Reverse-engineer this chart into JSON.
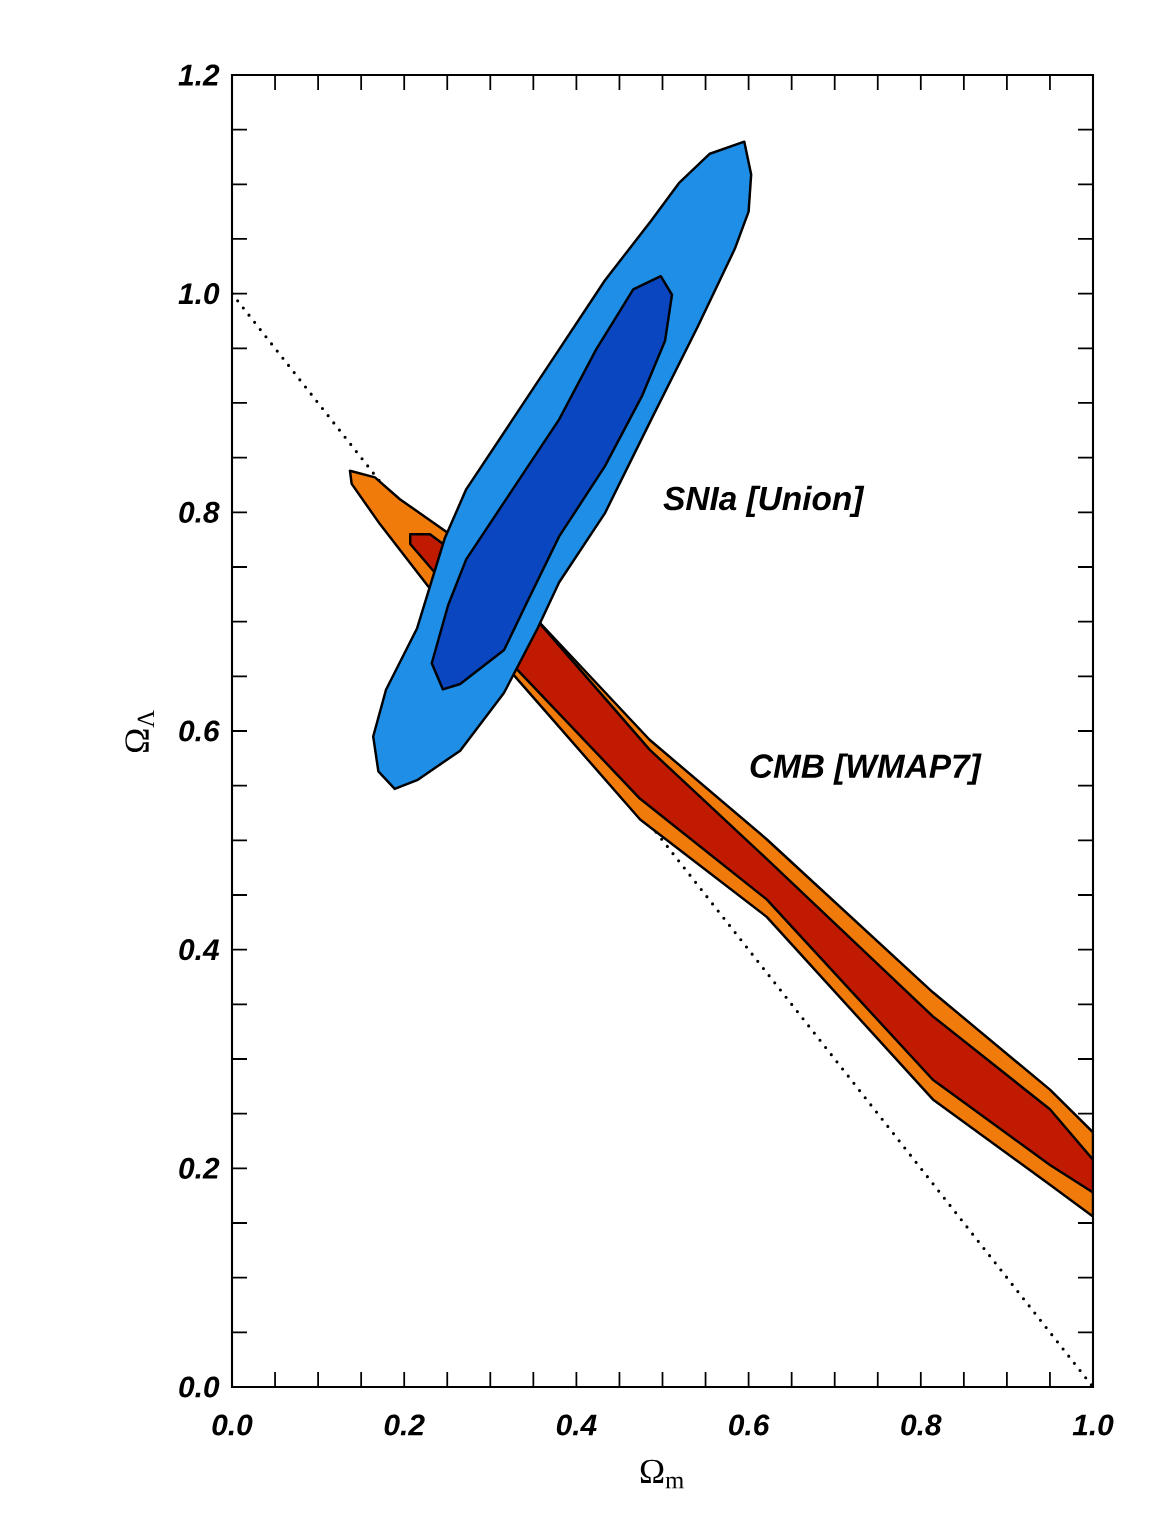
{
  "chart_data": {
    "type": "area",
    "xlabel": "Ω$_{m}$",
    "ylabel": "Ω$_{Λ}$",
    "xlim": [
      0,
      1
    ],
    "ylim": [
      0,
      1.2
    ],
    "xticks": [
      {
        "value": 0,
        "label": "0.0"
      },
      {
        "value": 0.05,
        "label": null
      },
      {
        "value": 0.1,
        "label": null
      },
      {
        "value": 0.15,
        "label": null
      },
      {
        "value": 0.2,
        "label": "0.2"
      },
      {
        "value": 0.25,
        "label": null
      },
      {
        "value": 0.3,
        "label": null
      },
      {
        "value": 0.35,
        "label": null
      },
      {
        "value": 0.4,
        "label": "0.4"
      },
      {
        "value": 0.45,
        "label": null
      },
      {
        "value": 0.5,
        "label": null
      },
      {
        "value": 0.55,
        "label": null
      },
      {
        "value": 0.6,
        "label": "0.6"
      },
      {
        "value": 0.65,
        "label": null
      },
      {
        "value": 0.7,
        "label": null
      },
      {
        "value": 0.75,
        "label": null
      },
      {
        "value": 0.8,
        "label": "0.8"
      },
      {
        "value": 0.85,
        "label": null
      },
      {
        "value": 0.9,
        "label": null
      },
      {
        "value": 0.95,
        "label": null
      },
      {
        "value": 1,
        "label": "1.0"
      }
    ],
    "yticks": [
      {
        "value": 0,
        "label": "0.0"
      },
      {
        "value": 0.05,
        "label": null
      },
      {
        "value": 0.1,
        "label": null
      },
      {
        "value": 0.15,
        "label": null
      },
      {
        "value": 0.2,
        "label": "0.2"
      },
      {
        "value": 0.25,
        "label": null
      },
      {
        "value": 0.3,
        "label": null
      },
      {
        "value": 0.35,
        "label": null
      },
      {
        "value": 0.4,
        "label": "0.4"
      },
      {
        "value": 0.45,
        "label": null
      },
      {
        "value": 0.5,
        "label": null
      },
      {
        "value": 0.55,
        "label": null
      },
      {
        "value": 0.6,
        "label": "0.6"
      },
      {
        "value": 0.65,
        "label": null
      },
      {
        "value": 0.7,
        "label": null
      },
      {
        "value": 0.75,
        "label": null
      },
      {
        "value": 0.8,
        "label": "0.8"
      },
      {
        "value": 0.85,
        "label": null
      },
      {
        "value": 0.9,
        "label": null
      },
      {
        "value": 0.95,
        "label": null
      },
      {
        "value": 1,
        "label": "1.0"
      },
      {
        "value": 1.05,
        "label": null
      },
      {
        "value": 1.1,
        "label": null
      },
      {
        "value": 1.15,
        "label": null
      },
      {
        "value": 1.2,
        "label": "1.2"
      }
    ],
    "grid": false,
    "marker": "none",
    "series": [
      {
        "type": "line",
        "color": "#000000",
        "line_style": "dotted",
        "x": [
          0,
          1
        ],
        "values": [
          1,
          0
        ]
      },
      {
        "color": "#f07a0a",
        "x": [
          0.137,
          0.166,
          0.195,
          0.253,
          0.354,
          0.485,
          0.621,
          0.814,
          0.95,
          1.0,
          1.0,
          0.95,
          0.814,
          0.621,
          0.474,
          0.323,
          0.23,
          0.172,
          0.139
        ],
        "values": [
          0.838,
          0.832,
          0.812,
          0.78,
          0.702,
          0.592,
          0.501,
          0.361,
          0.272,
          0.233,
          0.156,
          0.185,
          0.263,
          0.43,
          0.519,
          0.655,
          0.73,
          0.789,
          0.826
        ]
      },
      {
        "color": "#c01a00",
        "x": [
          0.207,
          0.23,
          0.276,
          0.358,
          0.485,
          0.621,
          0.814,
          0.95,
          1.0,
          1.0,
          0.95,
          0.814,
          0.621,
          0.474,
          0.323,
          0.242,
          0.207
        ],
        "values": [
          0.78,
          0.78,
          0.753,
          0.698,
          0.583,
          0.483,
          0.339,
          0.254,
          0.208,
          0.178,
          0.203,
          0.281,
          0.446,
          0.538,
          0.663,
          0.739,
          0.771
        ]
      },
      {
        "color": "#1e8ee6",
        "x": [
          0.189,
          0.17,
          0.164,
          0.179,
          0.215,
          0.247,
          0.272,
          0.326,
          0.38,
          0.433,
          0.487,
          0.519,
          0.555,
          0.595,
          0.603,
          0.6,
          0.584,
          0.541,
          0.487,
          0.433,
          0.38,
          0.355,
          0.316,
          0.265,
          0.215
        ],
        "values": [
          0.547,
          0.563,
          0.595,
          0.638,
          0.694,
          0.776,
          0.821,
          0.885,
          0.949,
          1.012,
          1.067,
          1.101,
          1.128,
          1.139,
          1.109,
          1.075,
          1.041,
          0.97,
          0.885,
          0.799,
          0.736,
          0.694,
          0.635,
          0.582,
          0.555
        ]
      },
      {
        "color": "#0a46bf",
        "x": [
          0.245,
          0.232,
          0.251,
          0.272,
          0.326,
          0.38,
          0.423,
          0.466,
          0.498,
          0.511,
          0.503,
          0.476,
          0.433,
          0.38,
          0.341,
          0.316,
          0.265
        ],
        "values": [
          0.638,
          0.662,
          0.715,
          0.757,
          0.821,
          0.885,
          0.949,
          1.004,
          1.016,
          0.999,
          0.957,
          0.906,
          0.842,
          0.778,
          0.715,
          0.674,
          0.643
        ]
      }
    ],
    "annotations": [
      "SNIa [Union]",
      "CMB [WMAP7]"
    ]
  }
}
